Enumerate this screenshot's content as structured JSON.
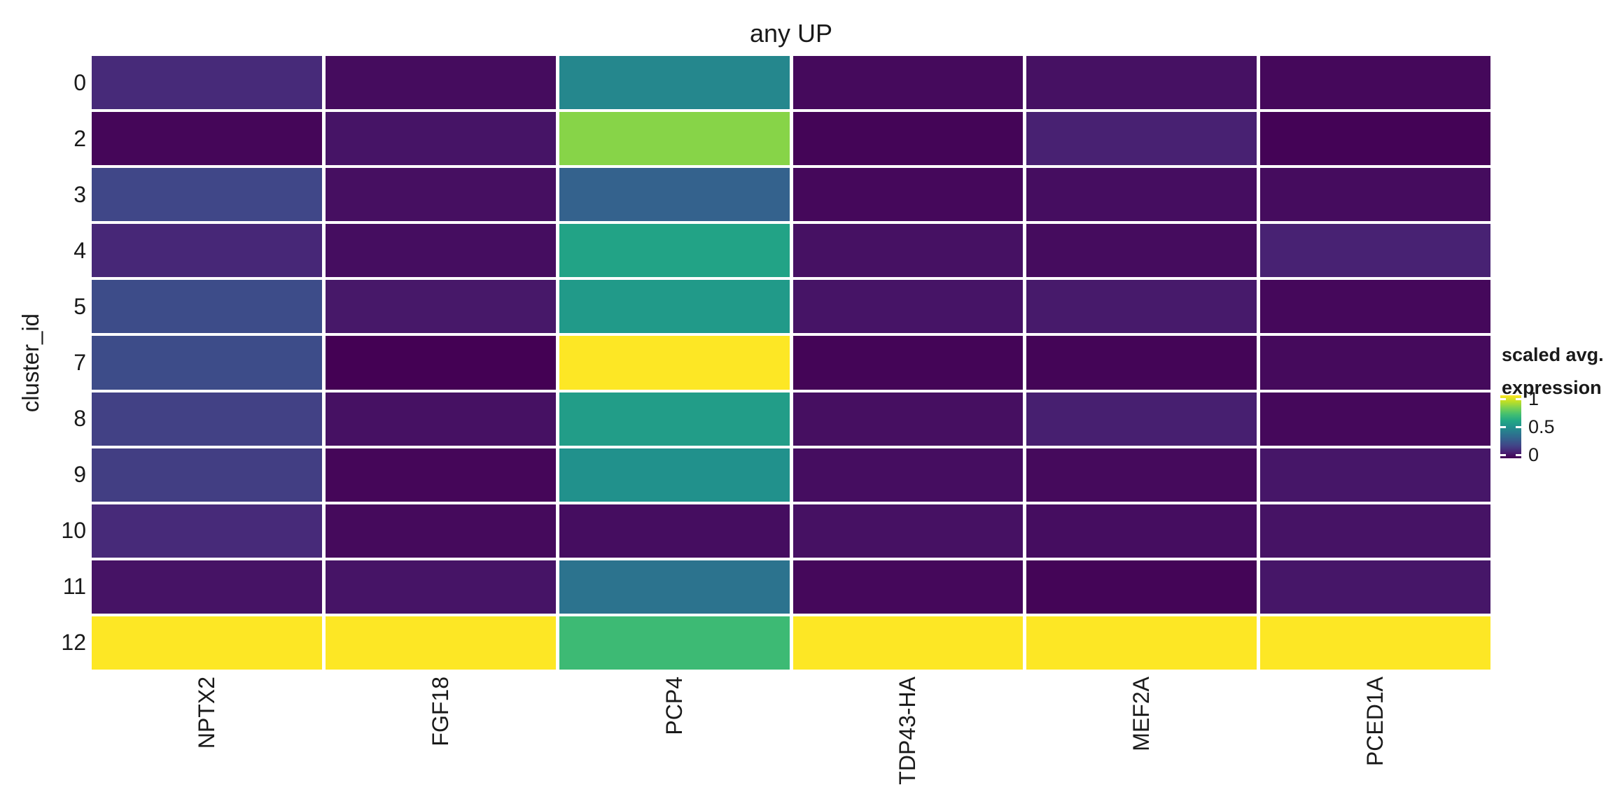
{
  "title": "any UP",
  "y_axis": {
    "title": "cluster_id",
    "labels": [
      "0",
      "2",
      "3",
      "4",
      "5",
      "7",
      "8",
      "9",
      "10",
      "11",
      "12"
    ]
  },
  "x_axis": {
    "labels": [
      "NPTX2",
      "FGF18",
      "PCP4",
      "TDP43-HA",
      "MEF2A",
      "PCED1A"
    ]
  },
  "legend": {
    "title_line1": "scaled avg.",
    "title_line2": "expression",
    "ticks": [
      {
        "label": "1",
        "value": 1
      },
      {
        "label": "0.5",
        "value": 0.5
      },
      {
        "label": "0",
        "value": 0
      }
    ]
  },
  "colors": {
    "background": "#ffffff",
    "text": "#1a1a1a",
    "grid_gap": "#ffffff"
  },
  "chart_data": {
    "type": "heatmap",
    "title": "any UP",
    "xlabel": "",
    "ylabel": "cluster_id",
    "legend_title": "scaled avg. expression",
    "x_categories": [
      "NPTX2",
      "FGF18",
      "PCP4",
      "TDP43-HA",
      "MEF2A",
      "PCED1A"
    ],
    "y_categories": [
      "0",
      "2",
      "3",
      "4",
      "5",
      "7",
      "8",
      "9",
      "10",
      "11",
      "12"
    ],
    "value_range": [
      0,
      1
    ],
    "colormap": "viridis",
    "color_stops": [
      [
        0.0,
        "#440154"
      ],
      [
        0.1,
        "#482475"
      ],
      [
        0.2,
        "#414487"
      ],
      [
        0.3,
        "#355f8d"
      ],
      [
        0.4,
        "#2a788e"
      ],
      [
        0.5,
        "#21918c"
      ],
      [
        0.6,
        "#22a884"
      ],
      [
        0.7,
        "#44bf70"
      ],
      [
        0.8,
        "#7ad151"
      ],
      [
        0.9,
        "#bddf26"
      ],
      [
        1.0,
        "#fde725"
      ]
    ],
    "values": [
      [
        0.12,
        0.03,
        0.46,
        0.025,
        0.045,
        0.02
      ],
      [
        0.015,
        0.055,
        0.82,
        0.01,
        0.09,
        0.005
      ],
      [
        0.21,
        0.04,
        0.31,
        0.02,
        0.035,
        0.03
      ],
      [
        0.11,
        0.035,
        0.58,
        0.045,
        0.03,
        0.095
      ],
      [
        0.23,
        0.065,
        0.54,
        0.055,
        0.07,
        0.02
      ],
      [
        0.23,
        0.0,
        1.0,
        0.01,
        0.01,
        0.025
      ],
      [
        0.19,
        0.045,
        0.55,
        0.04,
        0.085,
        0.02
      ],
      [
        0.18,
        0.015,
        0.5,
        0.035,
        0.025,
        0.06
      ],
      [
        0.12,
        0.025,
        0.035,
        0.045,
        0.035,
        0.05
      ],
      [
        0.05,
        0.055,
        0.38,
        0.02,
        0.01,
        0.06
      ],
      [
        1.0,
        1.0,
        0.68,
        1.0,
        1.0,
        1.0
      ]
    ]
  }
}
